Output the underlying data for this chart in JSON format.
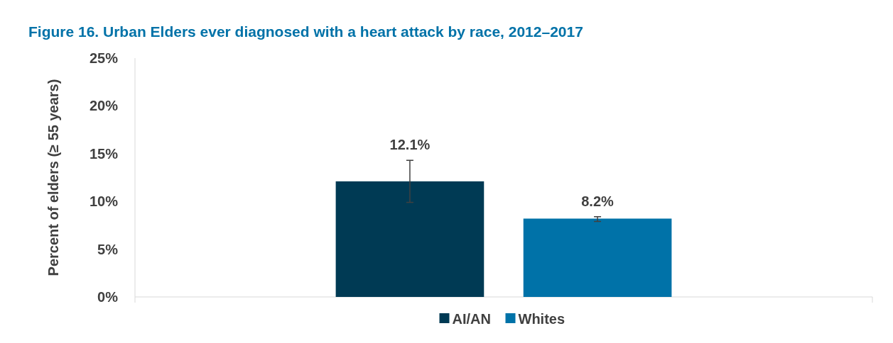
{
  "chart_data": {
    "type": "bar",
    "title": "Figure 16. Urban Elders ever diagnosed with a heart attack by race, 2012–2017",
    "ylabel": "Percent of elders (≥ 55 years)",
    "categories": [
      null
    ],
    "series": [
      {
        "name": "AI/AN",
        "color": "#003a54",
        "values": [
          12.1
        ],
        "errors": [
          [
            9.9,
            14.3
          ]
        ],
        "value_labels": [
          "12.1%"
        ]
      },
      {
        "name": "Whites",
        "color": "#0072a8",
        "values": [
          8.2
        ],
        "errors": [
          [
            7.9,
            8.4
          ]
        ],
        "value_labels": [
          "8.2%"
        ]
      }
    ],
    "ylim": [
      0,
      25
    ],
    "yticks": [
      {
        "value": 0,
        "label": "0%"
      },
      {
        "value": 5,
        "label": "5%"
      },
      {
        "value": 10,
        "label": "10%"
      },
      {
        "value": 15,
        "label": "15%"
      },
      {
        "value": 20,
        "label": "20%"
      },
      {
        "value": 25,
        "label": "25%"
      }
    ],
    "grid": false,
    "legend": "bottom"
  }
}
